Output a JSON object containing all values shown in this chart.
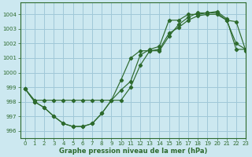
{
  "title": "Graphe pression niveau de la mer (hPa)",
  "bg_color": "#cce8f0",
  "grid_color": "#a0c8d8",
  "line_color": "#2d6a2d",
  "xlim": [
    -0.5,
    23
  ],
  "ylim": [
    995.5,
    1004.8
  ],
  "yticks": [
    996,
    997,
    998,
    999,
    1000,
    1001,
    1002,
    1003,
    1004
  ],
  "xticks": [
    0,
    1,
    2,
    3,
    4,
    5,
    6,
    7,
    8,
    9,
    10,
    11,
    12,
    13,
    14,
    15,
    16,
    17,
    18,
    19,
    20,
    21,
    22,
    23
  ],
  "line1_x": [
    0,
    1,
    2,
    3,
    4,
    5,
    6,
    7,
    8,
    9,
    10,
    11,
    12,
    13,
    14,
    15,
    16,
    17,
    18,
    19,
    20,
    21,
    22,
    23
  ],
  "line1_y": [
    998.9,
    998.0,
    997.6,
    997.0,
    996.5,
    996.3,
    996.3,
    996.5,
    997.2,
    998.1,
    998.1,
    999.0,
    1000.5,
    1001.5,
    1001.6,
    1002.7,
    1003.1,
    1003.6,
    1003.9,
    1004.0,
    1004.0,
    1003.6,
    1003.5,
    1001.5
  ],
  "line2_x": [
    0,
    1,
    2,
    3,
    4,
    5,
    6,
    7,
    8,
    9,
    10,
    11,
    12,
    13,
    14,
    15,
    16,
    17,
    18,
    19,
    20,
    21,
    22,
    23
  ],
  "line2_y": [
    998.9,
    998.0,
    997.6,
    997.0,
    996.5,
    996.3,
    996.3,
    996.5,
    997.2,
    998.1,
    998.8,
    999.4,
    1001.2,
    1001.6,
    1001.8,
    1003.6,
    1003.6,
    1004.0,
    1004.0,
    1004.1,
    1004.1,
    1003.6,
    1002.0,
    1001.6
  ],
  "line3_x": [
    0,
    1,
    2,
    3,
    4,
    5,
    6,
    7,
    8,
    9,
    10,
    11,
    12,
    13,
    14,
    15,
    16,
    17,
    18,
    19,
    20,
    21,
    22,
    23
  ],
  "line3_y": [
    998.9,
    998.1,
    998.1,
    998.1,
    998.1,
    998.1,
    998.1,
    998.1,
    998.1,
    998.1,
    999.5,
    1001.0,
    1001.5,
    1001.5,
    1001.5,
    1002.5,
    1003.3,
    1003.8,
    1004.1,
    1004.1,
    1004.2,
    1003.7,
    1001.6,
    1001.6
  ]
}
